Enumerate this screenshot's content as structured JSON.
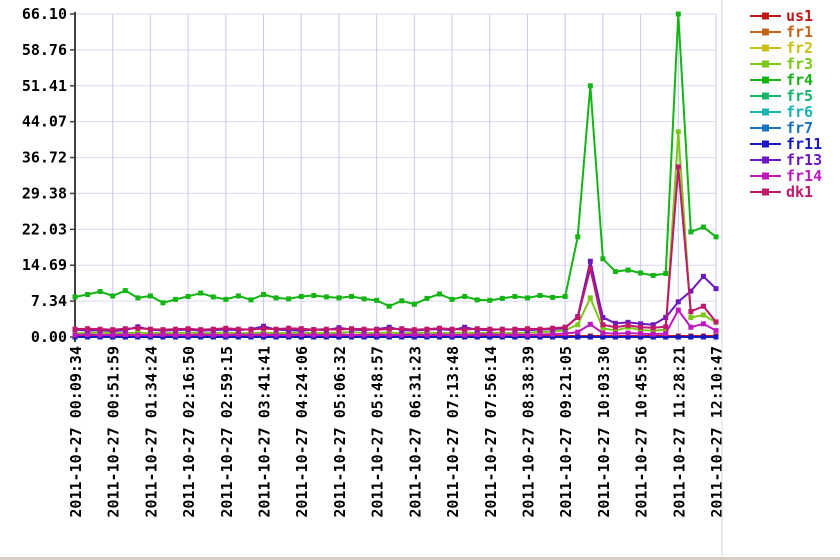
{
  "colors": {
    "background": "#ffffff",
    "axis": "#404040",
    "grid_vertical": "#c9c9ef",
    "grid_horizontal": "#dadaf2",
    "text": "#000000",
    "right_divider": "#d4d4e4",
    "bottom_strip": "#d5cfc2"
  },
  "chart_data": {
    "type": "line",
    "title": "",
    "xlabel": "",
    "ylabel": "",
    "grid": true,
    "legend_position": "right",
    "ylim": [
      0,
      66.1
    ],
    "y_ticks": [
      0.0,
      7.34,
      14.69,
      22.03,
      29.38,
      36.72,
      44.07,
      51.41,
      58.76,
      66.1
    ],
    "y_tick_labels": [
      "0.00",
      "7.34",
      "14.69",
      "22.03",
      "29.38",
      "36.72",
      "44.07",
      "51.41",
      "58.76",
      "66.10"
    ],
    "x_tick_labels": [
      "2011-10-27 00:09:34",
      "2011-10-27 00:51:59",
      "2011-10-27 01:34:24",
      "2011-10-27 02:16:50",
      "2011-10-27 02:59:15",
      "2011-10-27 03:41:41",
      "2011-10-27 04:24:06",
      "2011-10-27 05:06:32",
      "2011-10-27 05:48:57",
      "2011-10-27 06:31:23",
      "2011-10-27 07:13:48",
      "2011-10-27 07:56:14",
      "2011-10-27 08:38:39",
      "2011-10-27 09:21:05",
      "2011-10-27 10:03:30",
      "2011-10-27 10:45:56",
      "2011-10-27 11:28:21",
      "2011-10-27 12:10:47"
    ],
    "points_per_tick_interval": 3,
    "series": [
      {
        "name": "us1",
        "color": "#c01818",
        "values": [
          0.2,
          0.2,
          0.2,
          0.2,
          0.2,
          0.2,
          0.2,
          0.2,
          0.2,
          0.2,
          0.2,
          0.2,
          0.2,
          0.2,
          0.2,
          0.2,
          0.2,
          0.2,
          0.2,
          0.2,
          0.2,
          0.2,
          0.2,
          0.2,
          0.2,
          0.2,
          0.2,
          0.2,
          0.2,
          0.2,
          0.2,
          0.2,
          0.2,
          0.2,
          0.2,
          0.2,
          0.2,
          0.2,
          0.2,
          0.2,
          0.2,
          0.2,
          0.2,
          0.2,
          0.2,
          0.2,
          0.2,
          0.2,
          0.2,
          0.2,
          0.2,
          0.2
        ]
      },
      {
        "name": "fr1",
        "color": "#c86418",
        "values": [
          0,
          0,
          0,
          0,
          0,
          0,
          0,
          0,
          0,
          0,
          0,
          0,
          0,
          0,
          0,
          0,
          0,
          0,
          0,
          0,
          0,
          0,
          0,
          0,
          0,
          0,
          0,
          0,
          0,
          0,
          0,
          0,
          0,
          0,
          0,
          0,
          0,
          0,
          0,
          0,
          0,
          0,
          0,
          0,
          0,
          0,
          0,
          0,
          0,
          0,
          0,
          0
        ]
      },
      {
        "name": "fr2",
        "color": "#c8c218",
        "values": [
          0,
          0,
          0,
          0,
          0,
          0,
          0,
          0,
          0,
          0,
          0,
          0,
          0,
          0,
          0,
          0,
          0,
          0,
          0,
          0,
          0,
          0,
          0,
          0,
          0,
          0,
          0,
          0,
          0,
          0,
          0,
          0,
          0,
          0,
          0,
          0,
          0,
          0,
          0,
          0,
          0,
          0,
          0,
          0,
          0,
          0,
          0,
          0,
          0,
          0,
          0,
          0
        ]
      },
      {
        "name": "fr3",
        "color": "#7cc818",
        "values": [
          0.8,
          0.8,
          0.9,
          0.8,
          0.8,
          0.9,
          0.8,
          0.8,
          0.8,
          0.9,
          0.8,
          0.8,
          0.9,
          0.8,
          0.8,
          0.9,
          0.8,
          0.8,
          0.9,
          0.8,
          0.8,
          0.9,
          1.0,
          0.8,
          0.8,
          0.9,
          0.8,
          0.8,
          0.9,
          0.8,
          0.8,
          0.9,
          0.8,
          0.9,
          0.8,
          0.8,
          0.9,
          1.0,
          1.1,
          1.4,
          2.5,
          8.0,
          1.8,
          1.3,
          2.0,
          1.4,
          1.3,
          1.5,
          42.0,
          4.0,
          4.5,
          3.0
        ]
      },
      {
        "name": "fr4",
        "color": "#14b414",
        "values": [
          8.2,
          8.7,
          9.3,
          8.4,
          9.5,
          8.0,
          8.4,
          7.0,
          7.7,
          8.3,
          9.0,
          8.2,
          7.7,
          8.4,
          7.6,
          8.7,
          8.0,
          7.8,
          8.3,
          8.5,
          8.2,
          8.0,
          8.3,
          7.8,
          7.5,
          6.3,
          7.4,
          6.7,
          7.9,
          8.8,
          7.7,
          8.3,
          7.6,
          7.5,
          7.9,
          8.3,
          8.0,
          8.5,
          8.1,
          8.3,
          20.5,
          51.4,
          16.0,
          13.4,
          13.7,
          13.1,
          12.6,
          13.0,
          66.1,
          21.5,
          22.5,
          20.5
        ]
      },
      {
        "name": "fr5",
        "color": "#18b46c",
        "values": [
          0,
          0,
          0,
          0,
          0,
          0,
          0,
          0,
          0,
          0,
          0,
          0,
          0,
          0,
          0,
          0,
          0,
          0,
          0,
          0,
          0,
          0,
          0,
          0,
          0,
          0,
          0,
          0,
          0,
          0,
          0,
          0,
          0,
          0,
          0,
          0,
          0,
          0,
          0,
          0,
          0,
          0,
          0,
          0,
          0,
          0,
          0,
          0,
          0,
          0,
          0,
          0
        ]
      },
      {
        "name": "fr6",
        "color": "#18b4b4",
        "values": [
          0,
          0,
          0,
          0,
          0,
          0,
          0,
          0,
          0,
          0,
          0,
          0,
          0,
          0,
          0,
          0,
          0,
          0,
          0,
          0,
          0,
          0,
          0,
          0,
          0,
          0,
          0,
          0,
          0,
          0,
          0,
          0,
          0,
          0,
          0,
          0,
          0,
          0,
          0,
          0,
          0,
          0,
          0,
          0,
          0,
          0,
          0,
          0,
          0,
          0,
          0,
          0
        ]
      },
      {
        "name": "fr7",
        "color": "#1874c0",
        "values": [
          0,
          0,
          0,
          0,
          0,
          0,
          0,
          0,
          0,
          0,
          0,
          0,
          0,
          0,
          0,
          0,
          0,
          0,
          0,
          0,
          0,
          0,
          0,
          0,
          0,
          0,
          0,
          0,
          0,
          0,
          0,
          0,
          0,
          0,
          0,
          0,
          0,
          0,
          0,
          0,
          0,
          0,
          0,
          0,
          0,
          0,
          0,
          0,
          0,
          0,
          0,
          0
        ]
      },
      {
        "name": "fr11",
        "color": "#1818c0",
        "values": [
          0,
          0,
          0,
          0,
          0,
          0,
          0,
          0,
          0,
          0,
          0,
          0,
          0,
          0,
          0,
          0,
          0,
          0,
          0,
          0,
          0,
          0,
          0,
          0,
          0,
          0,
          0,
          0,
          0,
          0,
          0,
          0,
          0,
          0,
          0,
          0,
          0,
          0,
          0,
          0,
          0,
          0,
          0,
          0,
          0,
          0,
          0,
          0,
          0,
          0,
          0,
          0
        ]
      },
      {
        "name": "fr13",
        "color": "#6c18c0",
        "values": [
          1.5,
          1.3,
          1.4,
          1.2,
          1.4,
          2.1,
          1.5,
          1.3,
          1.4,
          1.5,
          1.3,
          1.4,
          1.5,
          1.4,
          1.6,
          2.2,
          1.5,
          1.4,
          1.3,
          1.5,
          1.4,
          1.9,
          1.5,
          1.4,
          1.6,
          2.0,
          1.4,
          1.3,
          1.5,
          1.6,
          1.4,
          2.0,
          1.5,
          1.4,
          1.6,
          1.5,
          1.4,
          1.5,
          1.6,
          1.8,
          4.2,
          15.5,
          4.0,
          2.8,
          3.0,
          2.7,
          2.5,
          4.0,
          7.2,
          9.4,
          12.4,
          9.9
        ]
      },
      {
        "name": "fr14",
        "color": "#c018c0",
        "values": [
          0.4,
          0.5,
          0.4,
          0.4,
          0.5,
          0.4,
          0.4,
          0.5,
          0.4,
          0.4,
          0.5,
          0.4,
          0.4,
          0.5,
          0.4,
          0.5,
          0.4,
          0.4,
          0.5,
          0.4,
          0.4,
          0.5,
          0.4,
          0.4,
          0.5,
          0.4,
          0.4,
          0.5,
          0.4,
          0.5,
          0.4,
          0.4,
          0.5,
          0.6,
          0.4,
          0.5,
          0.4,
          0.5,
          0.6,
          0.7,
          1.0,
          2.6,
          0.8,
          0.7,
          0.8,
          0.7,
          0.6,
          0.7,
          5.5,
          2.0,
          2.7,
          1.3
        ]
      },
      {
        "name": "dk1",
        "color": "#c0186c",
        "values": [
          1.6,
          1.7,
          1.6,
          1.5,
          1.7,
          1.8,
          1.6,
          1.5,
          1.6,
          1.7,
          1.5,
          1.6,
          1.8,
          1.6,
          1.5,
          1.7,
          1.6,
          1.8,
          1.7,
          1.5,
          1.6,
          1.5,
          1.7,
          1.6,
          1.5,
          1.6,
          1.7,
          1.5,
          1.6,
          1.8,
          1.6,
          1.5,
          1.7,
          1.6,
          1.5,
          1.6,
          1.7,
          1.6,
          1.8,
          2.0,
          4.0,
          14.0,
          2.5,
          2.0,
          2.4,
          2.0,
          1.9,
          2.1,
          34.8,
          5.2,
          6.3,
          3.1
        ]
      }
    ]
  }
}
